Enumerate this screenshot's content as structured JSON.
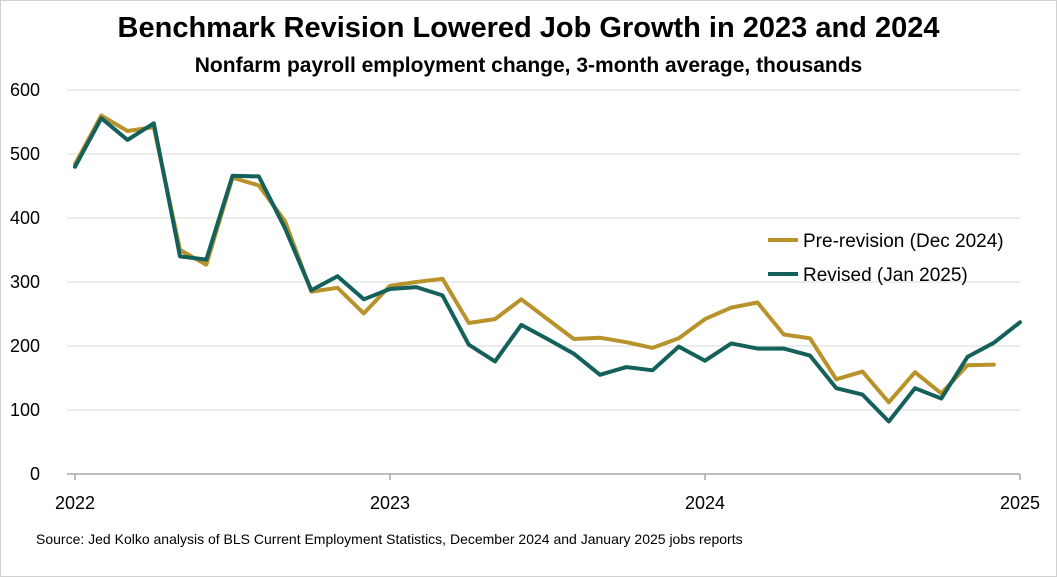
{
  "title": "Benchmark Revision Lowered Job Growth in 2023 and 2024",
  "subtitle": "Nonfarm payroll employment change, 3-month average, thousands",
  "source": "Source: Jed Kolko analysis of BLS Current Employment Statistics, December 2024 and January 2025 jobs reports",
  "chart_data": {
    "type": "line",
    "ylim": [
      0,
      600
    ],
    "y_ticks": [
      "0",
      "100",
      "200",
      "300",
      "400",
      "500",
      "600"
    ],
    "x_ticks": [
      "2022",
      "2023",
      "2024",
      "2025"
    ],
    "grid": "horizontal",
    "legend_position": "right",
    "x": [
      "2022-01",
      "2022-02",
      "2022-03",
      "2022-04",
      "2022-05",
      "2022-06",
      "2022-07",
      "2022-08",
      "2022-09",
      "2022-10",
      "2022-11",
      "2022-12",
      "2023-01",
      "2023-02",
      "2023-03",
      "2023-04",
      "2023-05",
      "2023-06",
      "2023-07",
      "2023-08",
      "2023-09",
      "2023-10",
      "2023-11",
      "2023-12",
      "2024-01",
      "2024-02",
      "2024-03",
      "2024-04",
      "2024-05",
      "2024-06",
      "2024-07",
      "2024-08",
      "2024-09",
      "2024-10",
      "2024-11",
      "2024-12",
      "2025-01"
    ],
    "series": [
      {
        "name": "Pre-revision (Dec 2024)",
        "color": "#b8922a",
        "values": [
          484,
          560,
          536,
          542,
          350,
          327,
          463,
          451,
          395,
          285,
          291,
          251,
          294,
          300,
          305,
          236,
          242,
          273,
          242,
          211,
          213,
          206,
          197,
          212,
          242,
          260,
          268,
          218,
          212,
          148,
          160,
          112,
          159,
          126,
          170,
          171,
          null
        ]
      },
      {
        "name": "Revised (Jan 2025)",
        "color": "#14605a",
        "values": [
          480,
          556,
          522,
          548,
          340,
          335,
          466,
          465,
          384,
          287,
          309,
          273,
          289,
          292,
          279,
          202,
          176,
          233,
          211,
          188,
          155,
          167,
          162,
          199,
          177,
          204,
          196,
          196,
          185,
          134,
          124,
          82,
          134,
          118,
          183,
          205,
          237
        ]
      }
    ]
  }
}
